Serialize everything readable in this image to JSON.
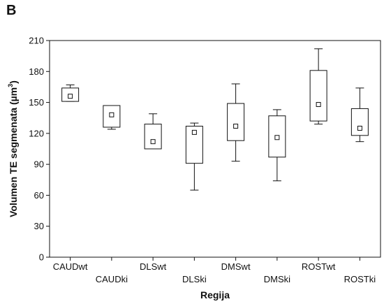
{
  "panel_label": "B",
  "chart_data": {
    "type": "boxplot",
    "xlabel": "Regija",
    "ylabel": "Volumen TE segmenata (µm³)",
    "ylabel_parts": {
      "base": "Volumen TE segmenata (µm",
      "sup": "3",
      "tail": ")"
    },
    "ylim": [
      0,
      210
    ],
    "yticks": [
      0,
      30,
      60,
      90,
      120,
      150,
      180,
      210
    ],
    "grid": false,
    "categories": [
      "CAUDwt",
      "CAUDki",
      "DLSwt",
      "DLSki",
      "DMSwt",
      "DMSki",
      "ROSTwt",
      "ROSTki"
    ],
    "boxes": [
      {
        "category": "CAUDwt",
        "whisker_low": 151,
        "q1": 151,
        "q3": 164,
        "whisker_high": 167,
        "mean": 156
      },
      {
        "category": "CAUDki",
        "whisker_low": 124,
        "q1": 126,
        "q3": 147,
        "whisker_high": 147,
        "mean": 138
      },
      {
        "category": "DLSwt",
        "whisker_low": 105,
        "q1": 105,
        "q3": 129,
        "whisker_high": 139,
        "mean": 112
      },
      {
        "category": "DLSki",
        "whisker_low": 65,
        "q1": 91,
        "q3": 127,
        "whisker_high": 130,
        "mean": 121
      },
      {
        "category": "DMSwt",
        "whisker_low": 93,
        "q1": 113,
        "q3": 149,
        "whisker_high": 168,
        "mean": 127
      },
      {
        "category": "DMSki",
        "whisker_low": 74,
        "q1": 97,
        "q3": 137,
        "whisker_high": 143,
        "mean": 116
      },
      {
        "category": "ROSTwt",
        "whisker_low": 129,
        "q1": 132,
        "q3": 181,
        "whisker_high": 202,
        "mean": 148
      },
      {
        "category": "ROSTki",
        "whisker_low": 112,
        "q1": 118,
        "q3": 144,
        "whisker_high": 164,
        "mean": 125
      }
    ],
    "mean_marker": "open-square"
  }
}
